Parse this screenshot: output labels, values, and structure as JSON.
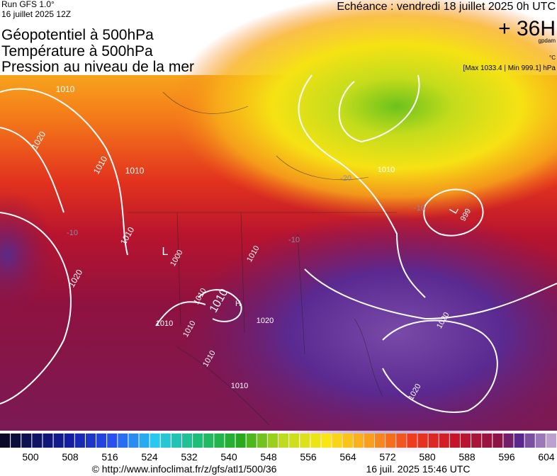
{
  "header": {
    "run": "Run GFS 1.0°",
    "date": "16 juillet 2025 12Z",
    "valid": "Echéance : vendredi 18 juillet 2025 0h UTC",
    "lead": "+ 36H",
    "unit_gpdam": "gpdam",
    "unit_c": "°C",
    "range": "[Max 1033.4 | Min 999.1] hPa",
    "titles": [
      "Géopotentiel à 500hPa",
      "Température à 500hPa",
      "Pression au niveau de la mer"
    ]
  },
  "map": {
    "labels": [
      "1010",
      "1010",
      "1020",
      "1010",
      "1010",
      "1000",
      "L",
      "1010",
      "1020",
      "H",
      "1010",
      "1010",
      "1010",
      "1010",
      "1010",
      "1010",
      "999",
      "L",
      "1010",
      "1020",
      "1020",
      "1020",
      "-10",
      "-10",
      "-20",
      "-10"
    ]
  },
  "colorbar": {
    "labels": [
      500,
      508,
      516,
      524,
      532,
      540,
      548,
      556,
      564,
      572,
      580,
      588,
      596,
      604
    ]
  },
  "footer": {
    "credit": "© http://www.infoclimat.fr/z/gfs/atl1/500/36",
    "timestamp": "16 juil. 2025 15:46 UTC"
  }
}
